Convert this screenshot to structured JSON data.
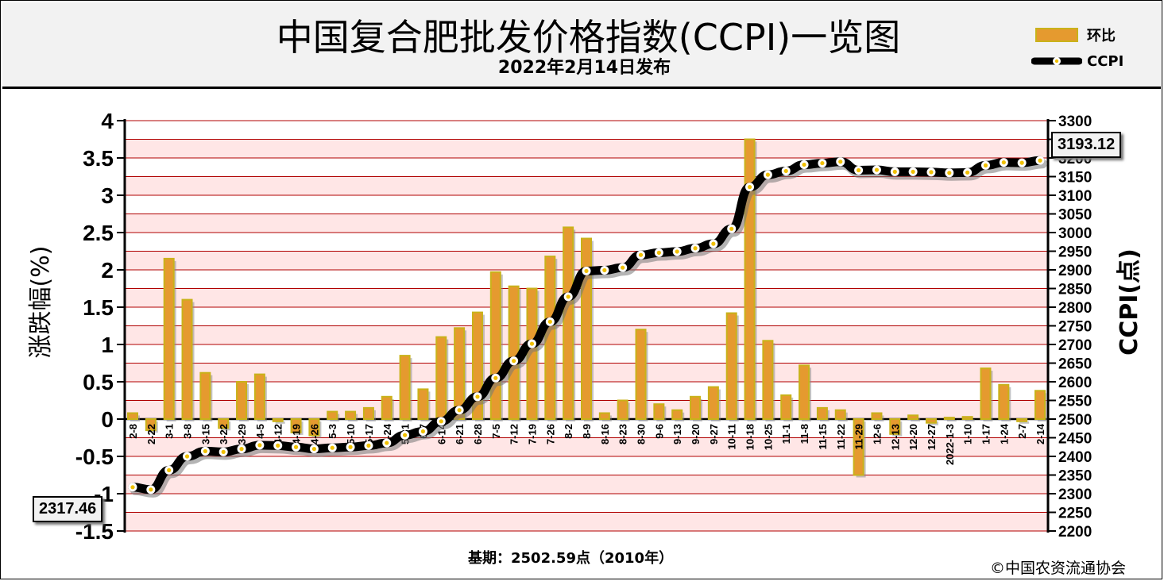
{
  "header": {
    "title": "中国复合肥批发价格指数(CCPI)一览图",
    "subtitle": "2022年2月14日发布"
  },
  "legend": {
    "bar_label": "环比",
    "line_label": "CCPI"
  },
  "footer": {
    "base_text": "基期：2502.59点（2010年）",
    "copyright": "©中国农资流通协会"
  },
  "callouts": {
    "first_value": "2317.46",
    "last_value": "3193.12"
  },
  "colors": {
    "bar_fill": "#e59a2f",
    "bar_edge": "#c9b21a",
    "band_fill": "#ffe6e6",
    "grid_line": "#b00000",
    "line": "#000000",
    "marker_fill": "#ffffff",
    "marker_dot": "#f0c000"
  },
  "chart_data": {
    "type": "bar+line",
    "y_left_label": "涨跌幅(%)",
    "y_right_label": "CCPI(点)",
    "y_left_range": [
      -1.5,
      4
    ],
    "y_left_ticks": [
      "4",
      "3.5",
      "3",
      "2.5",
      "2",
      "1.5",
      "1",
      "0.5",
      "0",
      "-0.5",
      "-1",
      "-1.5"
    ],
    "y_right_range": [
      2200,
      3300
    ],
    "y_right_ticks": [
      "3300",
      "3250",
      "3200",
      "3150",
      "3100",
      "3050",
      "3000",
      "2950",
      "2900",
      "2850",
      "2800",
      "2750",
      "2700",
      "2650",
      "2600",
      "2550",
      "2500",
      "2450",
      "2400",
      "2350",
      "2300",
      "2250",
      "2200"
    ],
    "categories": [
      "2-8",
      "2-22",
      "3-1",
      "3-8",
      "3-15",
      "3-22",
      "3-29",
      "4-5",
      "4-12",
      "4-19",
      "4-26",
      "5-3",
      "5-10",
      "5-17",
      "5-24",
      "5-31",
      "6-7",
      "6-14",
      "6-21",
      "6-28",
      "7-5",
      "7-12",
      "7-19",
      "7-26",
      "8-2",
      "8-9",
      "8-16",
      "8-23",
      "8-30",
      "9-6",
      "9-13",
      "9-20",
      "9-27",
      "10-11",
      "10-18",
      "10-25",
      "11-1",
      "11-8",
      "11-15",
      "11-22",
      "11-29",
      "12-6",
      "12-13",
      "12-20",
      "12-27",
      "2022-1-3",
      "1-10",
      "1-17",
      "1-24",
      "2-7",
      "2-14"
    ],
    "series": [
      {
        "name": "环比",
        "type": "bar",
        "values": [
          0.08,
          -0.15,
          2.15,
          1.6,
          0.62,
          -0.12,
          0.5,
          0.6,
          -0.03,
          -0.18,
          -0.22,
          0.1,
          0.1,
          0.15,
          0.3,
          0.85,
          0.4,
          1.1,
          1.22,
          1.43,
          1.97,
          1.78,
          1.75,
          2.18,
          2.57,
          2.42,
          0.08,
          0.25,
          1.2,
          0.2,
          0.12,
          0.3,
          0.43,
          1.42,
          3.75,
          1.05,
          0.32,
          0.72,
          0.15,
          0.12,
          -0.75,
          0.08,
          -0.2,
          0.05,
          -0.05,
          0.02,
          0.03,
          0.68,
          0.46,
          -0.03,
          0.38
        ]
      },
      {
        "name": "CCPI",
        "type": "line",
        "values": [
          2317.46,
          2311,
          2363,
          2400,
          2414,
          2412,
          2420,
          2430,
          2429,
          2425,
          2420,
          2423,
          2425,
          2429,
          2436,
          2457,
          2467,
          2494,
          2524,
          2560,
          2610,
          2656,
          2702,
          2761,
          2828,
          2897,
          2899,
          2906,
          2940,
          2946,
          2949,
          2958,
          2970,
          3010,
          3122,
          3155,
          3165,
          3182,
          3186,
          3190,
          3167,
          3168,
          3163,
          3163,
          3162,
          3160,
          3161,
          3180,
          3188,
          3187,
          3193.12
        ]
      }
    ]
  }
}
